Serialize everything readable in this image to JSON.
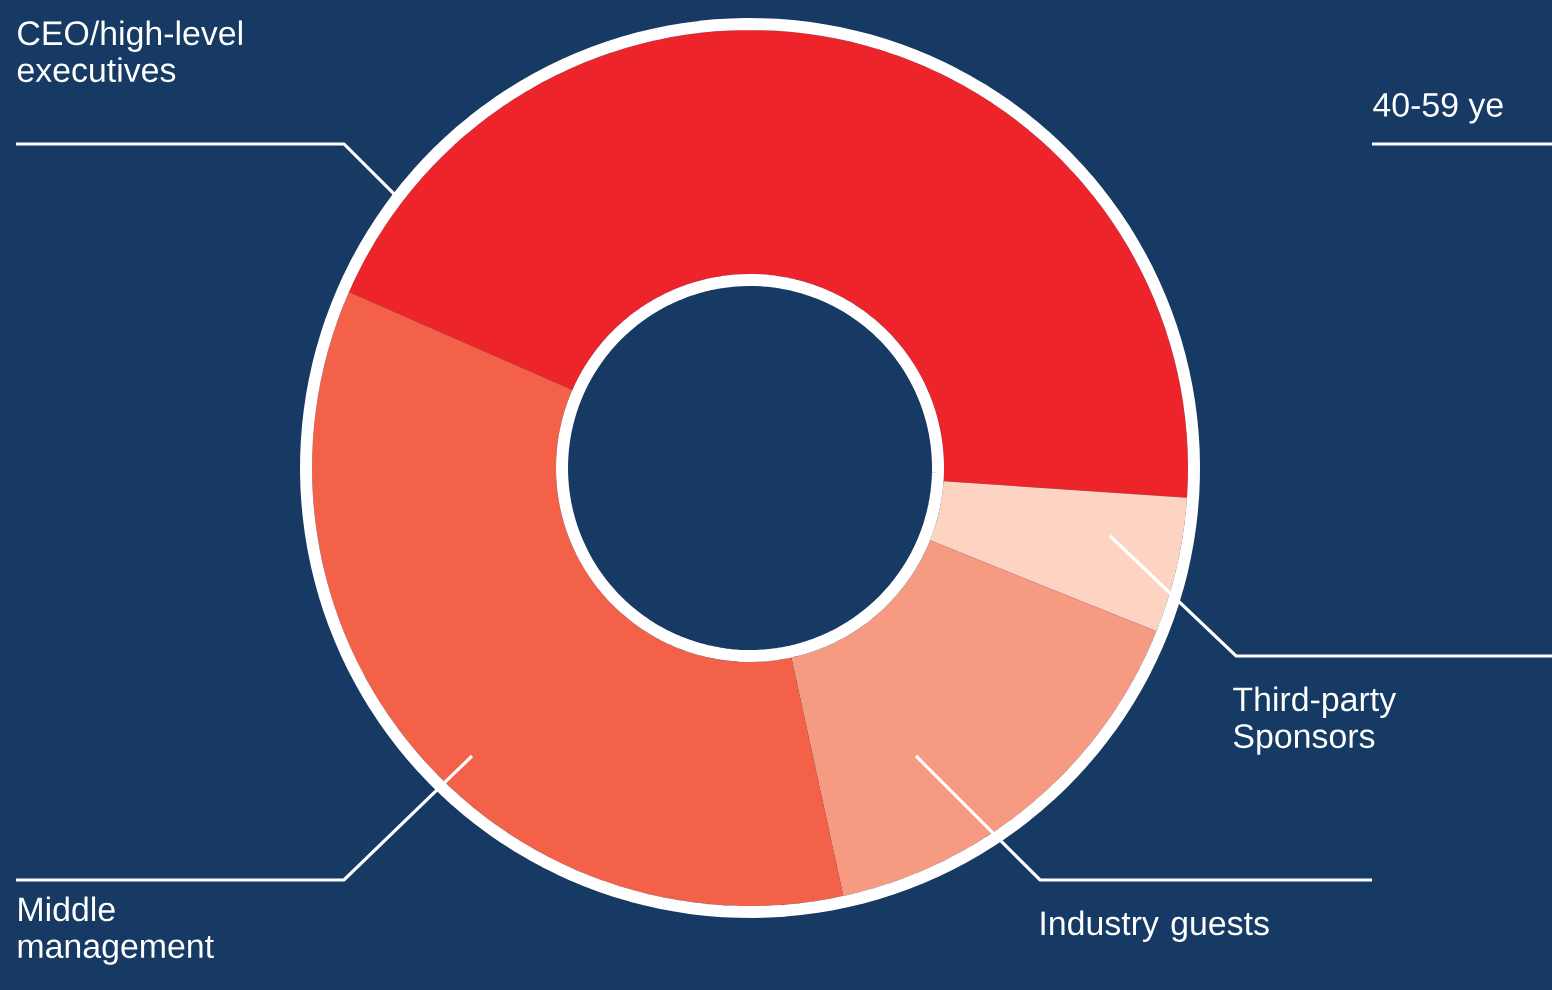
{
  "chart_data": {
    "type": "donut",
    "categories": [
      "CEO/high-level executives",
      "Third-party Sponsors",
      "Industry guests",
      "Middle management"
    ],
    "values": [
      44.5,
      5,
      15.5,
      35
    ],
    "colors": [
      "#ee242b",
      "#fdd3c2",
      "#f69b82",
      "#f26148"
    ],
    "annotations": [
      "40-59 ye"
    ]
  }
}
